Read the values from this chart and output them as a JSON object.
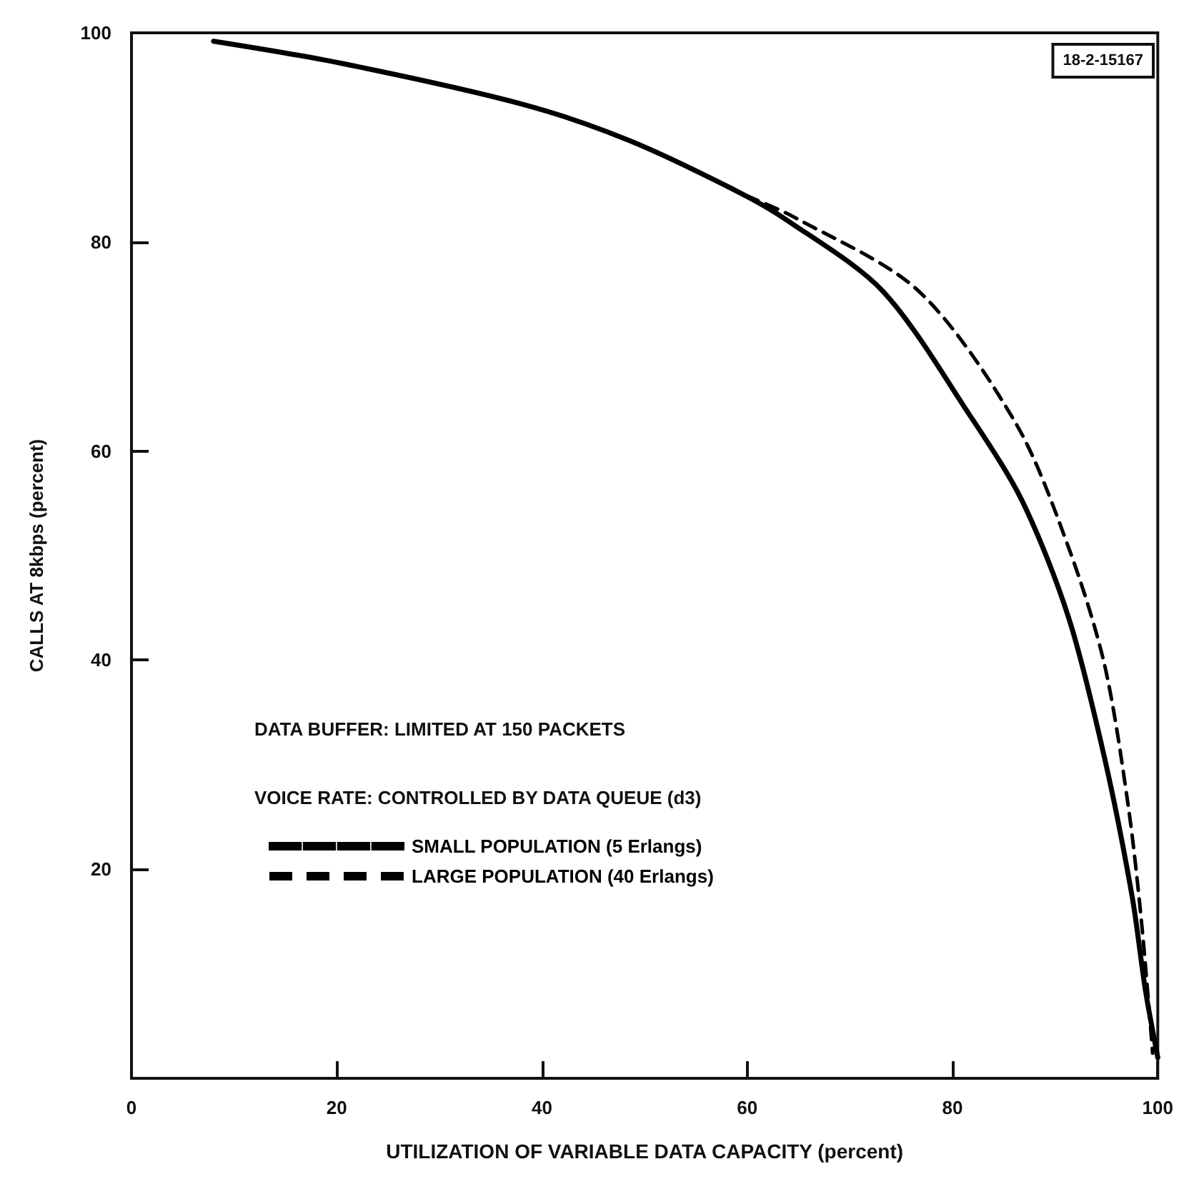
{
  "chart_data": {
    "type": "line",
    "xlabel": "UTILIZATION OF VARIABLE DATA CAPACITY (percent)",
    "ylabel": "CALLS AT 8kbps (percent)",
    "annotations": [
      "18-2-15167",
      "DATA BUFFER: LIMITED AT 150 PACKETS",
      "VOICE RATE: CONTROLLED BY DATA QUEUE (d3)"
    ],
    "xlim": [
      0,
      100
    ],
    "xticks": [
      0,
      20,
      40,
      60,
      80,
      100
    ],
    "ylim": [
      0,
      100
    ],
    "yticks": [
      20,
      40,
      60,
      80,
      100
    ],
    "grid": false,
    "legend": "left",
    "marker": "none",
    "series": [
      {
        "name": "SMALL POPULATION (5 Erlangs)",
        "color": "#000000",
        "line_style": "solid",
        "x": [
          8,
          20.4,
          38,
          48.5,
          59.1,
          64,
          73.2,
          81.7,
          86.8,
          91.3,
          94.8,
          97.5,
          98.8,
          100
        ],
        "values": [
          99.2,
          97.1,
          93.2,
          89.7,
          84.8,
          82,
          75.3,
          63.4,
          55.2,
          44.1,
          30.7,
          17.4,
          8.4,
          2
        ]
      },
      {
        "name": "LARGE POPULATION (40 Erlangs)",
        "color": "#000000",
        "line_style": "dashed",
        "x": [
          8,
          20.4,
          38,
          48.5,
          59.1,
          64.7,
          76.7,
          86.2,
          91.3,
          94.8,
          97.1,
          98.4,
          99.5
        ],
        "values": [
          99.2,
          97.1,
          93.2,
          89.7,
          84.8,
          82.3,
          75.3,
          62.6,
          50.8,
          39.6,
          26.2,
          15.1,
          2.4
        ]
      }
    ]
  }
}
